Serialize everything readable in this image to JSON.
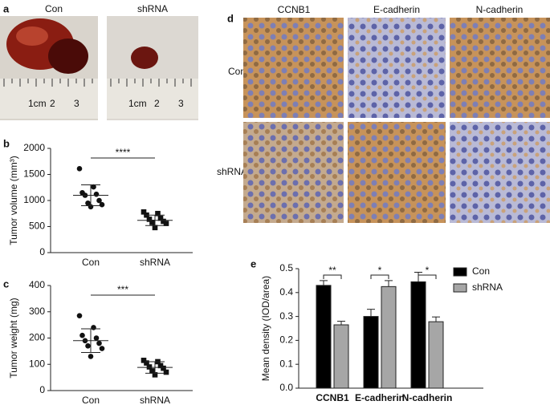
{
  "photos": {
    "label": "a",
    "columns": [
      {
        "label": "Con",
        "ruler": [
          "1cm",
          "2",
          "3"
        ]
      },
      {
        "label": "shRNA",
        "ruler": [
          "1cm",
          "2",
          "3"
        ]
      }
    ]
  },
  "ihc": {
    "label": "d",
    "columns": [
      "CCNB1",
      "E-cadherin",
      "N-cadherin"
    ],
    "rows": [
      "Con",
      "shRNA"
    ]
  },
  "chart_data": [
    {
      "type": "scatter",
      "panel_label": "b",
      "y_label": "Tumor volume (mm³)",
      "categories": [
        "Con",
        "shRNA"
      ],
      "points": [
        [
          1610,
          1260,
          1150,
          1120,
          1100,
          1000,
          950,
          920,
          880
        ],
        [
          780,
          750,
          720,
          660,
          640,
          600,
          580,
          560,
          480
        ]
      ],
      "mean": [
        1100,
        620
      ],
      "sd": [
        200,
        100
      ],
      "markers": [
        "circle",
        "square"
      ],
      "significance": "****",
      "ylim": [
        0,
        2000
      ],
      "yticks": [
        0,
        500,
        1000,
        1500,
        2000
      ]
    },
    {
      "type": "scatter",
      "panel_label": "c",
      "y_label": "Tumor weight (mg)",
      "categories": [
        "Con",
        "shRNA"
      ],
      "points": [
        [
          285,
          240,
          210,
          200,
          190,
          180,
          170,
          160,
          130
        ],
        [
          115,
          110,
          105,
          95,
          90,
          85,
          75,
          70,
          60
        ]
      ],
      "mean": [
        190,
        88
      ],
      "sd": [
        45,
        22
      ],
      "markers": [
        "circle",
        "square"
      ],
      "significance": "***",
      "ylim": [
        0,
        400
      ],
      "yticks": [
        0,
        100,
        200,
        300,
        400
      ]
    },
    {
      "type": "bar",
      "panel_label": "e",
      "y_label": "Mean density (IOD/area)",
      "categories": [
        "CCNB1",
        "E-cadherin",
        "N-cadherin"
      ],
      "series": [
        {
          "name": "Con",
          "color": "#000000",
          "values": [
            0.43,
            0.3,
            0.445
          ],
          "errors": [
            0.02,
            0.03,
            0.04
          ]
        },
        {
          "name": "shRNA",
          "color": "#a6a6a6",
          "values": [
            0.265,
            0.425,
            0.278
          ],
          "errors": [
            0.015,
            0.025,
            0.02
          ]
        }
      ],
      "significance": [
        "**",
        "*",
        "*"
      ],
      "legend": "top-right",
      "ylim": [
        0,
        0.5
      ],
      "yticks": [
        {
          "value": 0,
          "label": "0.0"
        },
        0.1,
        0.2,
        0.3,
        0.4,
        0.5
      ]
    }
  ]
}
